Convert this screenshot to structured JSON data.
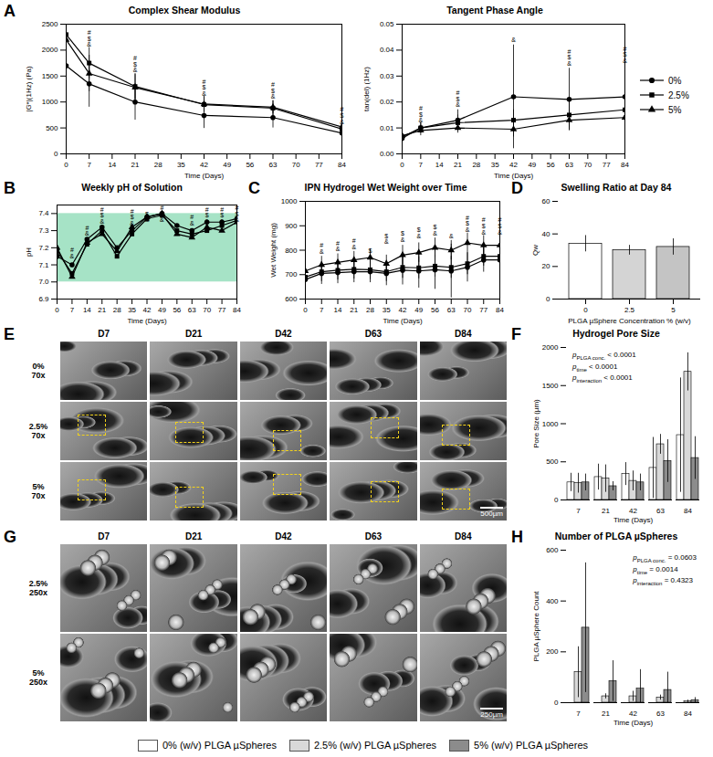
{
  "panel_letters": [
    "A",
    "B",
    "C",
    "D",
    "E",
    "F",
    "G",
    "H"
  ],
  "chart_data": [
    {
      "type": "line",
      "title": "Complex Shear Modulus",
      "x_label": "Time (Days)",
      "y_label": "|G*|(1Hz) (Pa)",
      "x": [
        0,
        7,
        21,
        42,
        63,
        84
      ],
      "xlim": [
        0,
        84
      ],
      "xticks": [
        0,
        7,
        14,
        21,
        28,
        35,
        42,
        49,
        56,
        63,
        70,
        77,
        84
      ],
      "ylim": [
        0,
        2500
      ],
      "yticks": [
        0,
        500,
        1000,
        1500,
        2000,
        2500
      ],
      "grid": false,
      "series": [
        {
          "name": "0%",
          "color": "#000000",
          "marker": "circle",
          "line_style": "solid",
          "values": [
            1700,
            1350,
            1000,
            740,
            700,
            400
          ],
          "error": [
            300,
            450,
            350,
            250,
            200,
            80
          ]
        },
        {
          "name": "2.5%",
          "color": "#000000",
          "marker": "square",
          "line_style": "solid",
          "values": [
            2300,
            1750,
            1300,
            950,
            880,
            480
          ],
          "error": [
            350,
            300,
            250,
            150,
            150,
            80
          ]
        },
        {
          "name": "5%",
          "color": "#000000",
          "marker": "triangle",
          "line_style": "solid",
          "values": [
            2200,
            1550,
            1280,
            960,
            900,
            520
          ],
          "error": [
            300,
            350,
            250,
            150,
            120,
            60
          ]
        }
      ],
      "annotations": [
        {
          "x": 7,
          "y": 2060,
          "text": "#\n$\n&"
        },
        {
          "x": 21,
          "y": 1570,
          "text": "#\n$\n&"
        },
        {
          "x": 42,
          "y": 1120,
          "text": "#\n$\n&"
        },
        {
          "x": 63,
          "y": 1060,
          "text": "#\n$\n&"
        },
        {
          "x": 84,
          "y": 580,
          "text": "#\n$\n&"
        }
      ]
    },
    {
      "type": "line",
      "title": "Tangent Phase Angle",
      "x_label": "Time (Days)",
      "y_label": "tan(del) (1Hz)",
      "x": [
        0,
        7,
        21,
        42,
        63,
        84
      ],
      "xlim": [
        0,
        84
      ],
      "xticks": [
        0,
        7,
        14,
        21,
        28,
        35,
        42,
        49,
        56,
        63,
        70,
        77,
        84
      ],
      "ylim": [
        0,
        0.05
      ],
      "yticks": [
        {
          "value": 0,
          "label": "0.00"
        },
        {
          "value": 0.01,
          "label": "0.01"
        },
        {
          "value": 0.02,
          "label": "0.02"
        },
        {
          "value": 0.03,
          "label": "0.03"
        },
        {
          "value": 0.04,
          "label": "0.04"
        },
        {
          "value": 0.05,
          "label": "0.05"
        }
      ],
      "grid": false,
      "legend": "right",
      "series": [
        {
          "name": "0%",
          "color": "#000000",
          "marker": "circle",
          "line_style": "solid",
          "values": [
            0.006,
            0.01,
            0.013,
            0.022,
            0.021,
            0.022
          ],
          "error": [
            0.001,
            0.002,
            0.004,
            0.02,
            0.012,
            0.012
          ]
        },
        {
          "name": "2.5%",
          "color": "#000000",
          "marker": "square",
          "line_style": "solid",
          "values": [
            0.0065,
            0.01,
            0.012,
            0.013,
            0.015,
            0.017
          ],
          "error": [
            0.001,
            0.002,
            0.003,
            0.004,
            0.005,
            0.005
          ]
        },
        {
          "name": "5%",
          "color": "#000000",
          "marker": "triangle",
          "line_style": "solid",
          "values": [
            0.007,
            0.009,
            0.01,
            0.0095,
            0.013,
            0.014
          ],
          "error": [
            0.001,
            0.002,
            0.002,
            0.003,
            0.004,
            0.004
          ]
        }
      ],
      "annotations": [
        {
          "x": 7,
          "y": 0.012,
          "text": "#\n$\n&"
        },
        {
          "x": 21,
          "y": 0.018,
          "text": "#\n$\n&"
        },
        {
          "x": 42,
          "y": 0.043,
          "text": "&"
        },
        {
          "x": 63,
          "y": 0.034,
          "text": "#\n$\n&"
        },
        {
          "x": 84,
          "y": 0.035,
          "text": "#\n$\n&"
        }
      ]
    },
    {
      "type": "line",
      "title": "Weekly pH of Solution",
      "x_label": "Time (Days)",
      "y_label": "pH",
      "x": [
        0,
        7,
        14,
        21,
        28,
        35,
        42,
        49,
        56,
        63,
        70,
        77,
        84
      ],
      "xlim": [
        0,
        84
      ],
      "xticks": [
        0,
        7,
        14,
        21,
        28,
        35,
        42,
        49,
        56,
        63,
        70,
        77,
        84
      ],
      "ylim": [
        6.9,
        7.45
      ],
      "yticks": [
        6.9,
        {
          "value": 7,
          "label": "7.0"
        },
        7.1,
        7.2,
        7.3,
        7.4
      ],
      "grid": false,
      "shaded_range": {
        "y1": 7,
        "y2": 7.4,
        "color": "#a6e3c6"
      },
      "series": [
        {
          "name": "0%",
          "color": "#000000",
          "marker": "circle",
          "line_style": "solid",
          "values": [
            7.15,
            7.1,
            7.25,
            7.32,
            7.2,
            7.3,
            7.38,
            7.4,
            7.33,
            7.3,
            7.35,
            7.35,
            7.37
          ]
        },
        {
          "name": "2.5%",
          "color": "#000000",
          "marker": "square",
          "line_style": "solid",
          "values": [
            7.18,
            7.05,
            7.22,
            7.3,
            7.15,
            7.28,
            7.37,
            7.39,
            7.3,
            7.28,
            7.3,
            7.33,
            7.36
          ]
        },
        {
          "name": "5%",
          "color": "#000000",
          "marker": "triangle",
          "line_style": "solid",
          "values": [
            7.2,
            7.03,
            7.23,
            7.28,
            7.18,
            7.32,
            7.38,
            7.4,
            7.28,
            7.26,
            7.32,
            7.3,
            7.35
          ]
        }
      ],
      "annotations": [
        {
          "x": 7,
          "y": 7.14,
          "text": "#\n&"
        },
        {
          "x": 14,
          "y": 7.27,
          "text": "#\n&"
        },
        {
          "x": 21,
          "y": 7.34,
          "text": "#\n$\n&"
        },
        {
          "x": 35,
          "y": 7.33,
          "text": "#\n$\n&"
        },
        {
          "x": 42,
          "y": 7.35,
          "text": "$\n&"
        },
        {
          "x": 49,
          "y": 7.35,
          "text": "#\n$\n&"
        },
        {
          "x": 63,
          "y": 7.33,
          "text": "#\n&"
        },
        {
          "x": 70,
          "y": 7.34,
          "text": "#\n$\n&"
        },
        {
          "x": 77,
          "y": 7.34,
          "text": "#\n$\n&"
        },
        {
          "x": 84,
          "y": 7.35,
          "text": "#\n$\n&"
        }
      ]
    },
    {
      "type": "line",
      "title": "IPN Hydrogel Wet Weight over Time",
      "x_label": "Time (Days)",
      "y_label": "Wet Weight (mg)",
      "x": [
        0,
        7,
        14,
        21,
        28,
        35,
        42,
        49,
        56,
        63,
        70,
        77,
        84
      ],
      "xlim": [
        0,
        84
      ],
      "xticks": [
        0,
        7,
        14,
        21,
        28,
        35,
        42,
        49,
        56,
        63,
        70,
        77,
        84
      ],
      "ylim": [
        600,
        1000
      ],
      "yticks": [
        600,
        700,
        800,
        900,
        1000
      ],
      "grid": false,
      "series": [
        {
          "name": "0%",
          "color": "#000000",
          "marker": "circle",
          "line_style": "solid",
          "values": [
            680,
            705,
            708,
            712,
            712,
            705,
            718,
            715,
            720,
            715,
            730,
            760,
            760
          ],
          "error": [
            30,
            45,
            45,
            45,
            45,
            50,
            60,
            70,
            80,
            110,
            60,
            50,
            45
          ]
        },
        {
          "name": "2.5%",
          "color": "#000000",
          "marker": "square",
          "line_style": "solid",
          "values": [
            690,
            712,
            718,
            722,
            720,
            712,
            730,
            728,
            735,
            730,
            745,
            775,
            775
          ],
          "error": [
            25,
            40,
            40,
            40,
            40,
            40,
            45,
            45,
            45,
            45,
            45,
            40,
            40
          ]
        },
        {
          "name": "5%",
          "color": "#000000",
          "marker": "triangle",
          "line_style": "solid",
          "values": [
            715,
            740,
            750,
            760,
            770,
            745,
            780,
            790,
            810,
            800,
            830,
            820,
            820
          ],
          "error": [
            25,
            35,
            35,
            35,
            35,
            35,
            40,
            40,
            40,
            40,
            40,
            40,
            40
          ]
        }
      ],
      "annotations": [
        {
          "x": 7,
          "y": 785,
          "text": "#\n&"
        },
        {
          "x": 14,
          "y": 795,
          "text": "#\n&"
        },
        {
          "x": 21,
          "y": 805,
          "text": "#\n&"
        },
        {
          "x": 28,
          "y": 790,
          "text": "$"
        },
        {
          "x": 35,
          "y": 825,
          "text": "$\n&"
        },
        {
          "x": 42,
          "y": 835,
          "text": "$\n&"
        },
        {
          "x": 49,
          "y": 850,
          "text": "$\n&"
        },
        {
          "x": 56,
          "y": 860,
          "text": "$\n&"
        },
        {
          "x": 63,
          "y": 850,
          "text": "&"
        },
        {
          "x": 70,
          "y": 875,
          "text": "#\n$\n&"
        },
        {
          "x": 77,
          "y": 865,
          "text": "#\n$\n&"
        },
        {
          "x": 84,
          "y": 865,
          "text": "#\n$\n&"
        }
      ]
    },
    {
      "type": "bar",
      "title": "Swelling Ratio at Day 84",
      "x_label": "PLGA µSphere Concentration % (w/v)",
      "y_label": "Qw",
      "categories": [
        "0",
        "2.5",
        "5"
      ],
      "values": [
        34,
        30,
        32
      ],
      "error": [
        5,
        3,
        5
      ],
      "colors": [
        "#ffffff",
        "#d4d4d4",
        "#c4c4c4"
      ],
      "ylim": [
        0,
        60
      ],
      "yticks": [
        0,
        20,
        40,
        60
      ],
      "grid": false
    },
    {
      "type": "bar",
      "title": "Hydrogel Pore Size",
      "x_label": "Time (Days)",
      "y_label": "Pore Size (µm)",
      "categories": [
        "7",
        "21",
        "42",
        "63",
        "84"
      ],
      "ylim": [
        0,
        2000
      ],
      "yticks": [
        0,
        500,
        1000,
        1500,
        2000
      ],
      "grid": false,
      "series": [
        {
          "name": "0% (w/v) PLGA µSpheres",
          "color": "#ffffff",
          "values": [
            230,
            300,
            340,
            420,
            850
          ],
          "error": [
            120,
            170,
            150,
            400,
            750
          ]
        },
        {
          "name": "2.5% (w/v) PLGA µSpheres",
          "color": "#d9d9d9",
          "values": [
            220,
            280,
            250,
            730,
            1680
          ],
          "error": [
            130,
            180,
            130,
            130,
            250
          ]
        },
        {
          "name": "5% (w/v) PLGA µSpheres",
          "color": "#8c8c8c",
          "values": [
            230,
            180,
            230,
            510,
            550
          ],
          "error": [
            110,
            60,
            110,
            280,
            280
          ]
        }
      ],
      "p_values": [
        {
          "symbol": "p",
          "subscript": "PLGA conc.",
          "text": "< 0.0001"
        },
        {
          "symbol": "p",
          "subscript": "time",
          "text": "< 0.0001"
        },
        {
          "symbol": "p",
          "subscript": "interaction",
          "text": "< 0.0001"
        }
      ]
    },
    {
      "type": "bar",
      "title": "Number of PLGA µSpheres",
      "x_label": "Time (Days)",
      "y_label": "PLGA µSphere Count",
      "categories": [
        "7",
        "21",
        "42",
        "63",
        "84"
      ],
      "ylim": [
        0,
        600
      ],
      "yticks": [
        0,
        200,
        400,
        600
      ],
      "grid": false,
      "series": [
        {
          "name": "0% (w/v) PLGA µSpheres",
          "color": "#ffffff",
          "values": [
            0,
            0,
            0,
            0,
            0
          ]
        },
        {
          "name": "2.5% (w/v) PLGA µSpheres",
          "color": "#d9d9d9",
          "values": [
            120,
            25,
            25,
            20,
            5
          ],
          "error": [
            100,
            10,
            20,
            10,
            5
          ]
        },
        {
          "name": "5% (w/v) PLGA µSpheres",
          "color": "#8c8c8c",
          "values": [
            295,
            85,
            55,
            50,
            10
          ],
          "error": [
            255,
            80,
            75,
            70,
            10
          ]
        }
      ],
      "p_values": [
        {
          "symbol": "p",
          "subscript": "PLGA conc.",
          "text": "= 0.0603"
        },
        {
          "symbol": "p",
          "subscript": "time",
          "text": "= 0.0014"
        },
        {
          "symbol": "p",
          "subscript": "interaction",
          "text": "= 0.4323"
        }
      ]
    }
  ],
  "sem_panels": [
    {
      "columns": [
        "D7",
        "D21",
        "D42",
        "D63",
        "D84"
      ],
      "rows": [
        "0%\n70x",
        "2.5%\n70x",
        "5%\n70x"
      ],
      "scale_bar": "500µm"
    },
    {
      "columns": [
        "D7",
        "D21",
        "D42",
        "D63",
        "D84"
      ],
      "rows": [
        "2.5%\n250x",
        "5%\n250x"
      ],
      "scale_bar": "250µm"
    }
  ],
  "legend": [
    {
      "name": "0% (w/v) PLGA µSpheres",
      "color": "#ffffff"
    },
    {
      "name": "2.5% (w/v) PLGA µSpheres",
      "color": "#d9d9d9"
    },
    {
      "name": "5% (w/v) PLGA µSpheres",
      "color": "#8c8c8c"
    }
  ]
}
